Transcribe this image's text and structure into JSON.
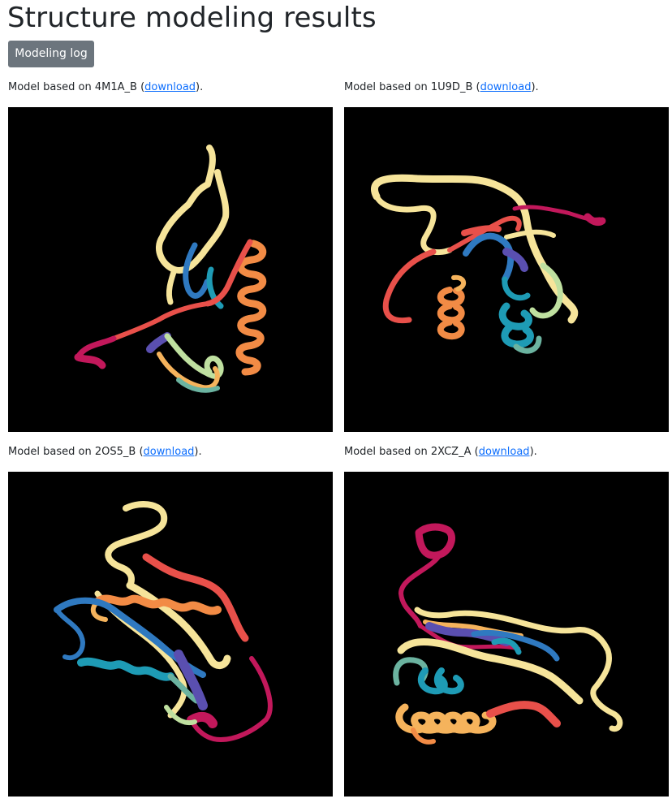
{
  "page": {
    "title": "Structure modeling results"
  },
  "toolbar": {
    "log_label": "Modeling log"
  },
  "models": [
    {
      "prefix": "Model based on ",
      "template": "4M1A_B",
      "open_paren": " (",
      "link": "download",
      "close": ")."
    },
    {
      "prefix": "Model based on ",
      "template": "1U9D_B",
      "open_paren": " (",
      "link": "download",
      "close": ")."
    },
    {
      "prefix": "Model based on ",
      "template": "2OS5_B",
      "open_paren": " (",
      "link": "download",
      "close": ")."
    },
    {
      "prefix": "Model based on ",
      "template": "2XCZ_A",
      "open_paren": " (",
      "link": "download",
      "close": ")."
    }
  ],
  "colors": {
    "link": "#0d6efd",
    "button": "#6c757d",
    "viewer_background": "#000000",
    "ribbon_palette": [
      "#c2185b",
      "#e8504a",
      "#f28b45",
      "#f5b35c",
      "#f6e49a",
      "#bfe0a0",
      "#6bb3a0",
      "#1e9bb5",
      "#2f79c0",
      "#5a4fb0"
    ]
  }
}
